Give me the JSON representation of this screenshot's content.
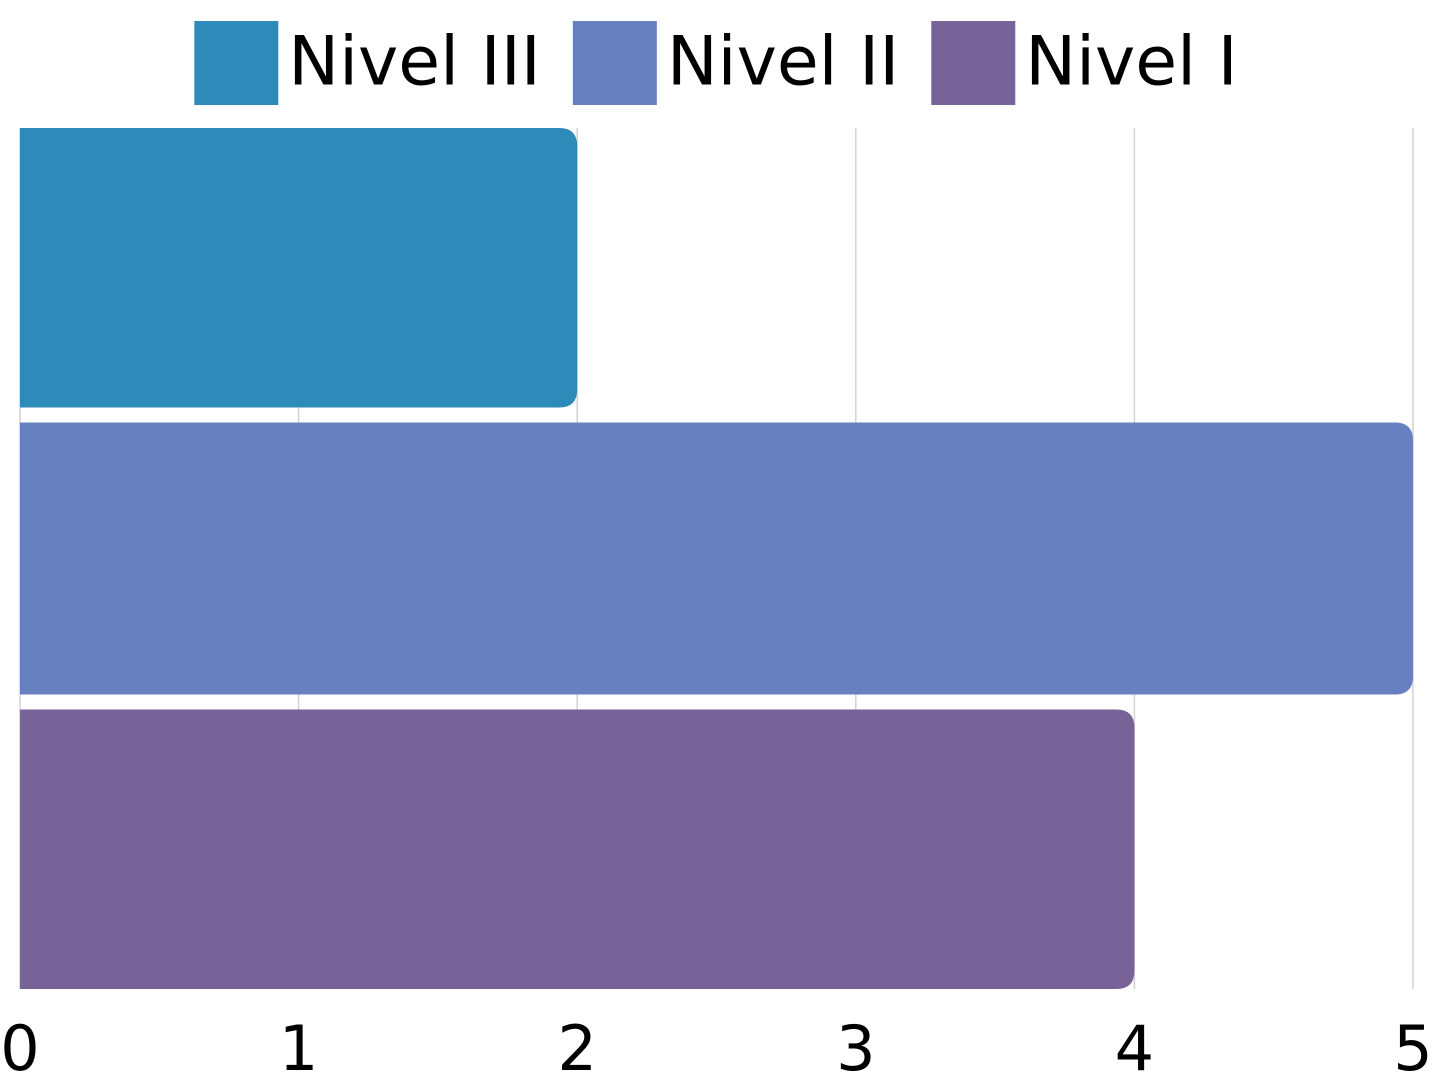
{
  "chart_data": {
    "type": "bar",
    "orientation": "horizontal",
    "categories": [
      null
    ],
    "series": [
      {
        "name": "Nivel III",
        "color": "#2e8bb9",
        "values": [
          2
        ]
      },
      {
        "name": "Nivel II",
        "color": "#6780c0",
        "values": [
          5
        ]
      },
      {
        "name": "Nivel I",
        "color": "#786399",
        "values": [
          4
        ]
      }
    ],
    "xlim": [
      0,
      5
    ],
    "xticks": [
      0,
      1,
      2,
      3,
      4,
      5
    ],
    "grid": true,
    "legend": "top"
  }
}
